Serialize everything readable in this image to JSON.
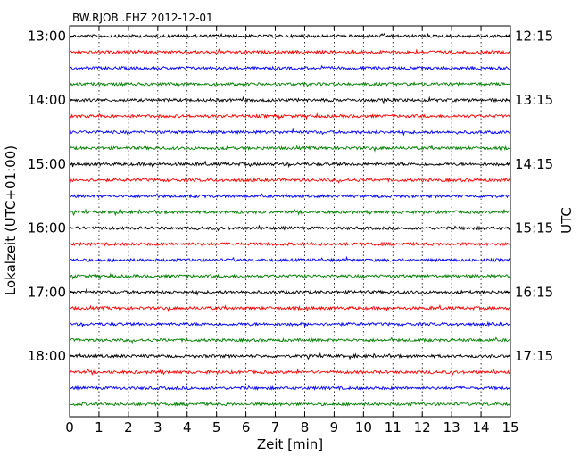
{
  "chart_data": {
    "type": "line",
    "title": "BW.RJOB..EHZ 2012-12-01",
    "xlabel": "Zeit  [min]",
    "ylabel_left": "Lokalzeit (UTC+01:00)",
    "ylabel_right": "UTC",
    "x_ticks": [
      "0",
      "1",
      "2",
      "3",
      "4",
      "5",
      "6",
      "7",
      "8",
      "9",
      "10",
      "11",
      "12",
      "13",
      "14",
      "15"
    ],
    "xlim": [
      0,
      15
    ],
    "left_tick_labels": [
      "13:00",
      "14:00",
      "15:00",
      "16:00",
      "17:00",
      "18:00"
    ],
    "right_tick_labels": [
      "12:15",
      "13:15",
      "14:15",
      "15:15",
      "16:15",
      "17:15"
    ],
    "grid": "vertical dotted at each minute",
    "trace_interval_min": 15,
    "trace_count": 24,
    "trace_color_cycle": [
      "#000000",
      "#ff0000",
      "#0000ff",
      "#007f00"
    ],
    "series_note": "Each trace shows 15 minutes of low-amplitude seismic noise"
  }
}
